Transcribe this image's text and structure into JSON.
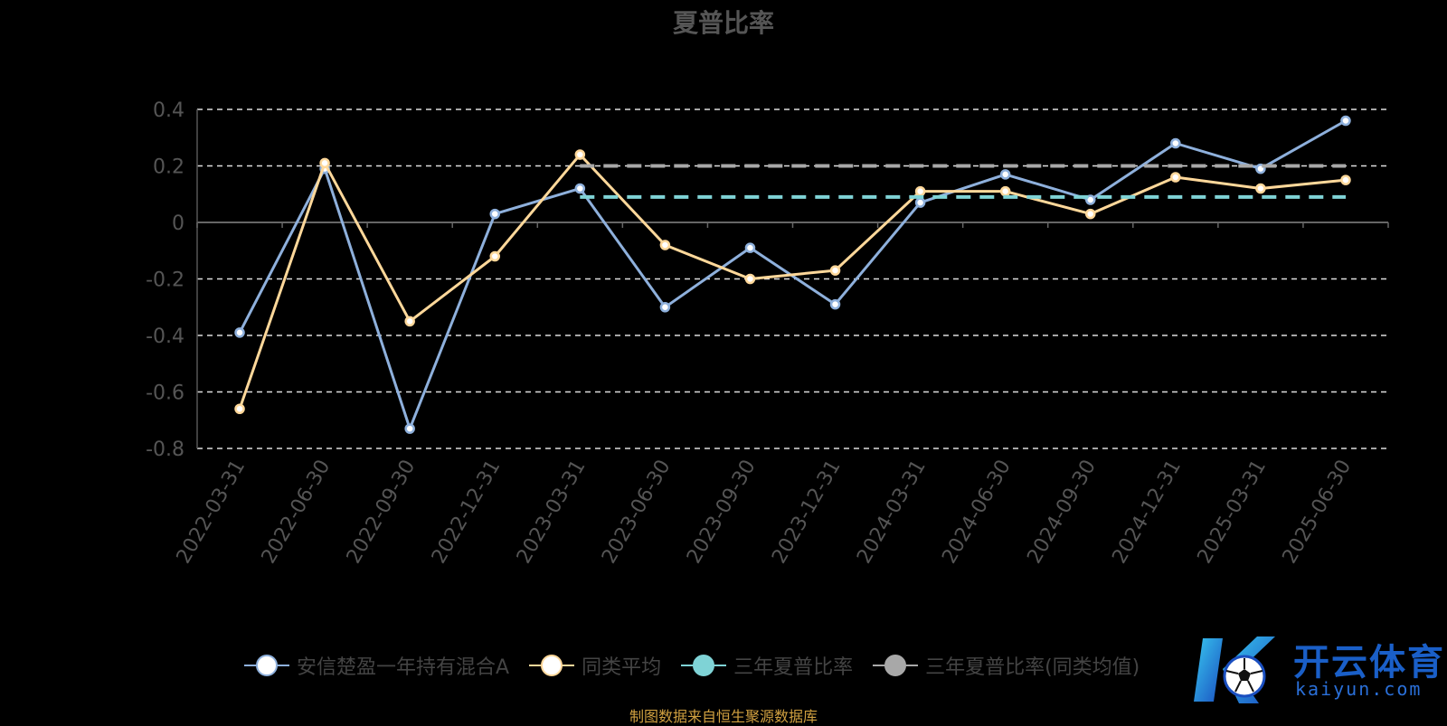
{
  "colors": {
    "fund": "#8eb0dc",
    "peer_avg": "#ffd89a",
    "three_year": "#7fd3d6",
    "three_year_peer": "#a8a8a8",
    "grid": "#dddddd",
    "axis_text": "#555555",
    "source": "#d0a040"
  },
  "chart_data": {
    "type": "line",
    "title": "夏普比率",
    "xlabel": "",
    "ylabel": "",
    "ylim": [
      -0.8,
      0.4
    ],
    "yticks": [
      0.4,
      0.2,
      0,
      -0.2,
      -0.4,
      -0.6,
      -0.8
    ],
    "ytick_labels": [
      "0.4",
      "0.2",
      "0",
      "-0.2",
      "-0.4",
      "-0.6",
      "-0.8"
    ],
    "grid": true,
    "legend_position": "bottom",
    "categories": [
      "2022-03-31",
      "2022-06-30",
      "2022-09-30",
      "2022-12-31",
      "2023-03-31",
      "2023-06-30",
      "2023-09-30",
      "2023-12-31",
      "2024-03-31",
      "2024-06-30",
      "2024-09-30",
      "2024-12-31",
      "2025-03-31",
      "2025-06-30"
    ],
    "series": [
      {
        "name": "安信楚盈一年持有混合A",
        "style": "solid",
        "color": "#8eb0dc",
        "values": [
          -0.39,
          0.19,
          -0.73,
          0.03,
          0.12,
          -0.3,
          -0.09,
          -0.29,
          0.07,
          0.17,
          0.08,
          0.28,
          0.19,
          0.36
        ]
      },
      {
        "name": "同类平均",
        "style": "solid",
        "color": "#ffd89a",
        "values": [
          -0.66,
          0.21,
          -0.35,
          -0.12,
          0.24,
          -0.08,
          -0.2,
          -0.17,
          0.11,
          0.11,
          0.03,
          0.16,
          0.12,
          0.15
        ]
      },
      {
        "name": "三年夏普比率",
        "style": "dashed",
        "color": "#7fd3d6",
        "values": [
          null,
          null,
          null,
          null,
          0.09,
          0.09,
          0.09,
          0.09,
          0.09,
          0.09,
          0.09,
          0.09,
          0.09,
          0.09
        ]
      },
      {
        "name": "三年夏普比率(同类均值)",
        "style": "dashed",
        "color": "#a8a8a8",
        "values": [
          null,
          null,
          null,
          null,
          0.2,
          0.2,
          0.2,
          0.2,
          0.2,
          0.2,
          0.2,
          0.2,
          0.2,
          0.2
        ]
      }
    ]
  },
  "source_note": "制图数据来自恒生聚源数据库",
  "watermark": {
    "title": "开云体育",
    "subtitle": "kaiyun.com"
  }
}
